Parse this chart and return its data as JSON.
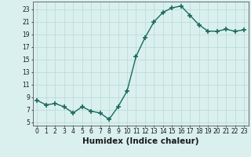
{
  "x": [
    0,
    1,
    2,
    3,
    4,
    5,
    6,
    7,
    8,
    9,
    10,
    11,
    12,
    13,
    14,
    15,
    16,
    17,
    18,
    19,
    20,
    21,
    22,
    23
  ],
  "y": [
    8.5,
    7.8,
    8.0,
    7.5,
    6.5,
    7.5,
    6.8,
    6.5,
    5.5,
    7.5,
    10.0,
    15.5,
    18.5,
    21.0,
    22.5,
    23.2,
    23.5,
    22.0,
    20.5,
    19.5,
    19.5,
    19.8,
    19.5,
    19.7
  ],
  "line_color": "#1a6b5a",
  "marker": "+",
  "marker_size": 4,
  "bg_color": "#d9f0ee",
  "grid_color": "#b8d8d4",
  "xlabel": "Humidex (Indice chaleur)",
  "xlim": [
    -0.5,
    23.5
  ],
  "ylim": [
    4.5,
    24.2
  ],
  "yticks": [
    5,
    7,
    9,
    11,
    13,
    15,
    17,
    19,
    21,
    23
  ],
  "xticks": [
    0,
    1,
    2,
    3,
    4,
    5,
    6,
    7,
    8,
    9,
    10,
    11,
    12,
    13,
    14,
    15,
    16,
    17,
    18,
    19,
    20,
    21,
    22,
    23
  ],
  "tick_fontsize": 5.5,
  "label_fontsize": 7.5,
  "linewidth": 1.0,
  "marker_color": "#1a6b5a"
}
